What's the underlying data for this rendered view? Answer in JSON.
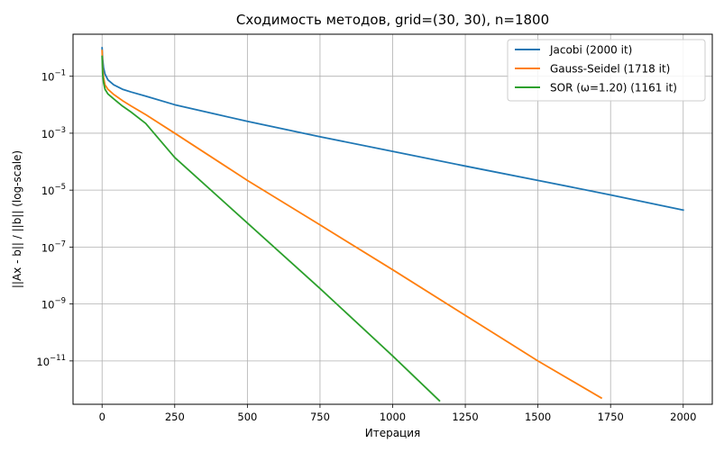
{
  "chart_data": {
    "type": "line",
    "title": "Сходимость методов, grid=(30, 30), n=1800",
    "xlabel": "Итерация",
    "ylabel": "||Ax - b|| / ||b|| (log-scale)",
    "xlim": [
      -100,
      2100
    ],
    "ylim": [
      3e-13,
      3
    ],
    "yscale": "log",
    "grid": true,
    "legend_position": "top-right",
    "x_ticks": [
      0,
      250,
      500,
      750,
      1000,
      1250,
      1500,
      1750,
      2000
    ],
    "x_tick_labels": [
      "0",
      "250",
      "500",
      "750",
      "1000",
      "1250",
      "1500",
      "1750",
      "2000"
    ],
    "y_ticks": [
      0.1,
      0.001,
      1e-05,
      1e-07,
      1e-09,
      1e-11
    ],
    "y_tick_labels": [
      {
        "base": "10",
        "exp": "−1"
      },
      {
        "base": "10",
        "exp": "−3"
      },
      {
        "base": "10",
        "exp": "−5"
      },
      {
        "base": "10",
        "exp": "−7"
      },
      {
        "base": "10",
        "exp": "−9"
      },
      {
        "base": "10",
        "exp": "−11"
      }
    ],
    "series": [
      {
        "name": "Jacobi (2000 it)",
        "color": "#1f77b4",
        "points": [
          [
            0,
            1.0
          ],
          [
            2,
            0.4
          ],
          [
            5,
            0.2
          ],
          [
            10,
            0.12
          ],
          [
            20,
            0.075
          ],
          [
            40,
            0.05
          ],
          [
            70,
            0.035
          ],
          [
            100,
            0.028
          ],
          [
            150,
            0.02
          ],
          [
            250,
            0.01
          ],
          [
            500,
            0.0026
          ],
          [
            750,
            0.00075
          ],
          [
            1000,
            0.00023
          ],
          [
            1250,
            7e-05
          ],
          [
            1500,
            2.2e-05
          ],
          [
            1750,
            6.8e-06
          ],
          [
            2000,
            2e-06
          ]
        ]
      },
      {
        "name": "Gauss-Seidel (1718 it)",
        "color": "#ff7f0e",
        "points": [
          [
            0,
            0.8
          ],
          [
            2,
            0.2
          ],
          [
            5,
            0.09
          ],
          [
            10,
            0.05
          ],
          [
            20,
            0.035
          ],
          [
            40,
            0.023
          ],
          [
            70,
            0.014
          ],
          [
            100,
            0.009
          ],
          [
            150,
            0.0045
          ],
          [
            250,
            0.001
          ],
          [
            500,
            2.2e-05
          ],
          [
            750,
            6e-07
          ],
          [
            1000,
            1.6e-08
          ],
          [
            1250,
            4e-10
          ],
          [
            1500,
            1e-11
          ],
          [
            1718,
            5e-13
          ]
        ]
      },
      {
        "name": "SOR (ω=1.20) (1161 it)",
        "color": "#2ca02c",
        "points": [
          [
            0,
            0.5
          ],
          [
            2,
            0.12
          ],
          [
            5,
            0.06
          ],
          [
            10,
            0.035
          ],
          [
            20,
            0.024
          ],
          [
            40,
            0.016
          ],
          [
            70,
            0.009
          ],
          [
            100,
            0.0055
          ],
          [
            150,
            0.0022
          ],
          [
            250,
            0.00014
          ],
          [
            500,
            7e-07
          ],
          [
            750,
            3.5e-09
          ],
          [
            1000,
            1.5e-11
          ],
          [
            1161,
            4e-13
          ]
        ]
      }
    ]
  }
}
